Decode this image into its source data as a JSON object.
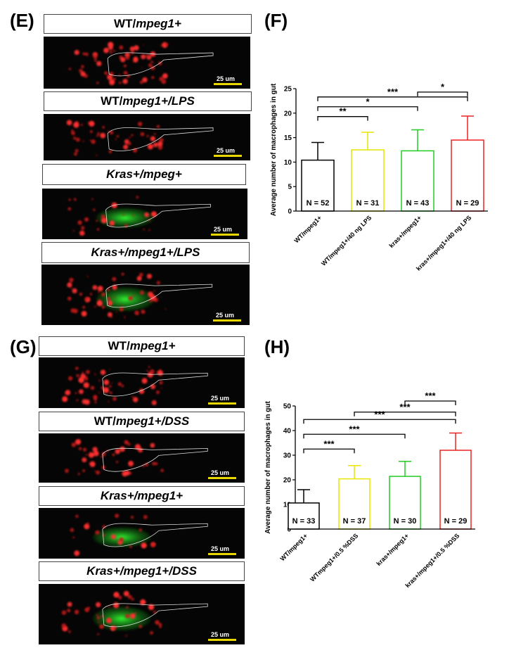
{
  "panels": {
    "E": {
      "letter": "(E)"
    },
    "F": {
      "letter": "(F)"
    },
    "G": {
      "letter": "(G)"
    },
    "H": {
      "letter": "(H)"
    }
  },
  "images_top": [
    {
      "label_a": "WT/",
      "label_b": "mpeg1+",
      "italic_prefix": false,
      "scale": "25 um"
    },
    {
      "label_a": "WT/",
      "label_b": "mpeg1+/LPS",
      "italic_prefix": false,
      "scale": "25 um"
    },
    {
      "label_a": "Kras+/",
      "label_b": "mpeg+",
      "italic_prefix": true,
      "scale": "25 um"
    },
    {
      "label_a": "Kras+/",
      "label_b": "mpeg1+/LPS",
      "italic_prefix": true,
      "scale": "25 um"
    }
  ],
  "images_bottom": [
    {
      "label_a": "WT/",
      "label_b": "mpeg1+",
      "italic_prefix": false,
      "scale": "25 um"
    },
    {
      "label_a": "WT/",
      "label_b": "mpeg1+/DSS",
      "italic_prefix": false,
      "scale": "25 um"
    },
    {
      "label_a": "Kras+/",
      "label_b": "mpeg1+",
      "italic_prefix": true,
      "scale": "25 um"
    },
    {
      "label_a": "Kras+/",
      "label_b": "mpeg1+/DSS",
      "italic_prefix": true,
      "scale": "25 um"
    }
  ],
  "chart_data": [
    {
      "type": "bar",
      "panel": "F",
      "ylabel": "Average number of macrophages in gut",
      "ylim": [
        0,
        25
      ],
      "yticks": [
        "0",
        "5",
        "10",
        "15",
        "20",
        "25"
      ],
      "categories": [
        "WT/mpeg1+",
        "WT/mpeg1+/40 ng LPS",
        "kras+/mpeg1+",
        "kras+/mpeg1+/40 ng LPS"
      ],
      "values": [
        10.4,
        12.5,
        12.3,
        14.5
      ],
      "errors": [
        3.6,
        3.6,
        4.3,
        4.9
      ],
      "n_labels": [
        "N = 52",
        "N = 31",
        "N = 43",
        "N = 29"
      ],
      "colors": [
        "#000000",
        "#e6e600",
        "#22cc22",
        "#ee2222"
      ],
      "significance": [
        {
          "from": 0,
          "to": 1,
          "label": "**",
          "y": 19.3
        },
        {
          "from": 0,
          "to": 2,
          "label": "*",
          "y": 21.3
        },
        {
          "from": 0,
          "to": 3,
          "label": "***",
          "y": 23.3
        },
        {
          "from": 2,
          "to": 3,
          "label": "*",
          "y": 24.3
        }
      ]
    },
    {
      "type": "bar",
      "panel": "H",
      "ylabel": "Average number of macrophages in gut",
      "ylim": [
        0,
        50
      ],
      "yticks": [
        "0",
        "10",
        "20",
        "30",
        "40",
        "50"
      ],
      "categories": [
        "WT/mpeg1+",
        "WTmpeg1+/0.5 %DSS",
        "kras+/mpeg1+",
        "kras+/mpeg1+/0.5 %DSS"
      ],
      "values": [
        10.6,
        20.4,
        21.4,
        32.0
      ],
      "errors": [
        5.4,
        5.4,
        6.1,
        7.0
      ],
      "n_labels": [
        "N = 33",
        "N = 37",
        "N = 30",
        "N = 29"
      ],
      "colors": [
        "#000000",
        "#e6e600",
        "#22cc22",
        "#ee2222"
      ],
      "significance": [
        {
          "from": 0,
          "to": 1,
          "label": "***",
          "y": 32.5
        },
        {
          "from": 0,
          "to": 2,
          "label": "***",
          "y": 38.5
        },
        {
          "from": 0,
          "to": 3,
          "label": "***",
          "y": 44.5
        },
        {
          "from": 1,
          "to": 3,
          "label": "***",
          "y": 47.5
        },
        {
          "from": 2,
          "to": 3,
          "label": "***",
          "y": 52.0
        }
      ]
    }
  ]
}
